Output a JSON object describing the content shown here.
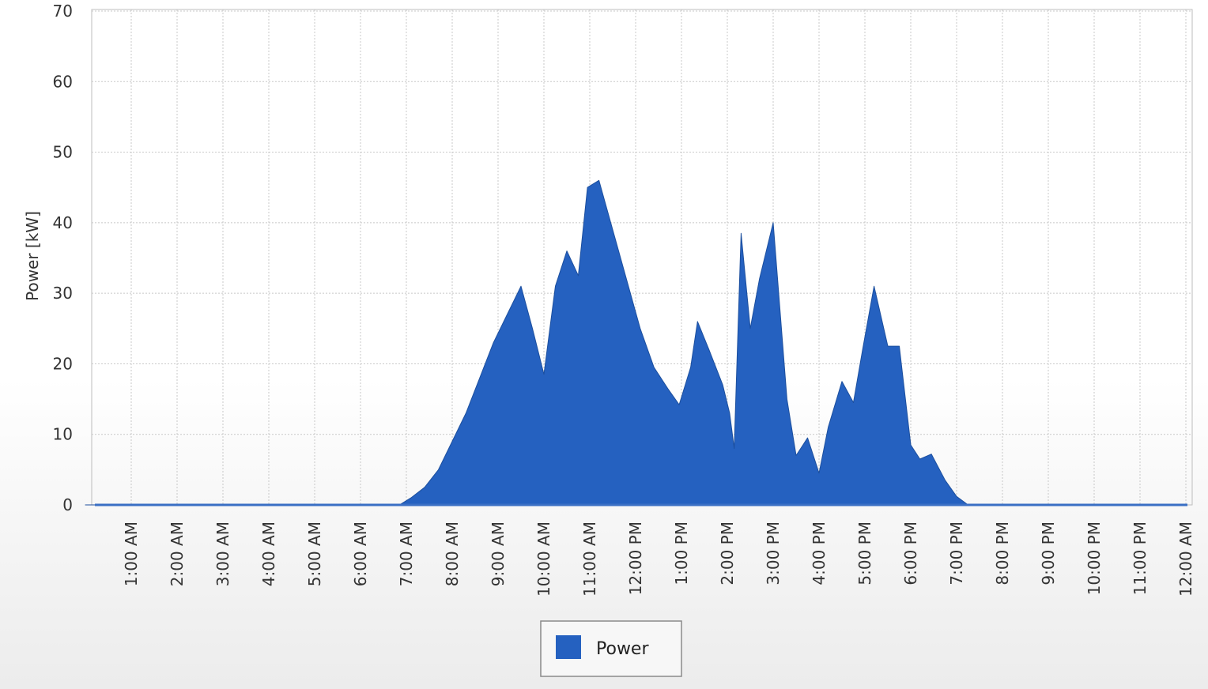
{
  "chart_data": {
    "type": "area",
    "title": "",
    "xlabel": "",
    "ylabel": "Power [kW]",
    "ylim": [
      0,
      70
    ],
    "yticks": [
      0,
      10,
      20,
      30,
      40,
      50,
      60,
      70
    ],
    "xlim": [
      0,
      24
    ],
    "xticks": [
      {
        "x": 1,
        "label": "1:00 AM"
      },
      {
        "x": 2,
        "label": "2:00 AM"
      },
      {
        "x": 3,
        "label": "3:00 AM"
      },
      {
        "x": 4,
        "label": "4:00 AM"
      },
      {
        "x": 5,
        "label": "5:00 AM"
      },
      {
        "x": 6,
        "label": "6:00 AM"
      },
      {
        "x": 7,
        "label": "7:00 AM"
      },
      {
        "x": 8,
        "label": "8:00 AM"
      },
      {
        "x": 9,
        "label": "9:00 AM"
      },
      {
        "x": 10,
        "label": "10:00 AM"
      },
      {
        "x": 11,
        "label": "11:00 AM"
      },
      {
        "x": 12,
        "label": "12:00 PM"
      },
      {
        "x": 13,
        "label": "1:00 PM"
      },
      {
        "x": 14,
        "label": "2:00 PM"
      },
      {
        "x": 15,
        "label": "3:00 PM"
      },
      {
        "x": 16,
        "label": "4:00 PM"
      },
      {
        "x": 17,
        "label": "5:00 PM"
      },
      {
        "x": 18,
        "label": "6:00 PM"
      },
      {
        "x": 19,
        "label": "7:00 PM"
      },
      {
        "x": 20,
        "label": "8:00 PM"
      },
      {
        "x": 21,
        "label": "9:00 PM"
      },
      {
        "x": 22,
        "label": "10:00 PM"
      },
      {
        "x": 23,
        "label": "11:00 PM"
      },
      {
        "x": 24,
        "label": "12:00 AM"
      }
    ],
    "grid": true,
    "legend": "bottom-center",
    "series": [
      {
        "name": "Power",
        "color": "#2561c0",
        "points": [
          [
            0,
            0
          ],
          [
            6.85,
            0
          ],
          [
            7.1,
            1
          ],
          [
            7.4,
            2.5
          ],
          [
            7.7,
            5
          ],
          [
            8.0,
            9
          ],
          [
            8.3,
            13
          ],
          [
            8.6,
            18
          ],
          [
            8.9,
            23
          ],
          [
            9.2,
            27
          ],
          [
            9.5,
            31
          ],
          [
            9.75,
            25
          ],
          [
            10.0,
            18.5
          ],
          [
            10.25,
            31
          ],
          [
            10.5,
            36
          ],
          [
            10.75,
            32.5
          ],
          [
            10.95,
            45
          ],
          [
            11.2,
            46
          ],
          [
            11.5,
            39
          ],
          [
            11.8,
            32
          ],
          [
            12.1,
            25
          ],
          [
            12.4,
            19.5
          ],
          [
            12.7,
            16.5
          ],
          [
            12.95,
            14.2
          ],
          [
            13.2,
            19.5
          ],
          [
            13.35,
            26
          ],
          [
            13.6,
            22
          ],
          [
            13.9,
            17
          ],
          [
            14.05,
            13
          ],
          [
            14.15,
            8
          ],
          [
            14.3,
            38.5
          ],
          [
            14.5,
            25
          ],
          [
            14.7,
            32
          ],
          [
            15.0,
            40
          ],
          [
            15.3,
            15
          ],
          [
            15.5,
            7
          ],
          [
            15.75,
            9.5
          ],
          [
            16.0,
            4.5
          ],
          [
            16.2,
            11
          ],
          [
            16.5,
            17.5
          ],
          [
            16.75,
            14.5
          ],
          [
            16.95,
            22
          ],
          [
            17.2,
            31
          ],
          [
            17.5,
            22.5
          ],
          [
            17.75,
            22.5
          ],
          [
            18.0,
            8.5
          ],
          [
            18.2,
            6.5
          ],
          [
            18.45,
            7.2
          ],
          [
            18.75,
            3.5
          ],
          [
            19.0,
            1.2
          ],
          [
            19.25,
            0
          ],
          [
            24,
            0
          ]
        ]
      }
    ]
  },
  "colors": {
    "series_fill": "#2561c0",
    "series_edge": "#1c4f9e",
    "grid": "#c8c8c8",
    "plot_border": "#bdbdbd",
    "legend_border": "#8a8a8a"
  }
}
